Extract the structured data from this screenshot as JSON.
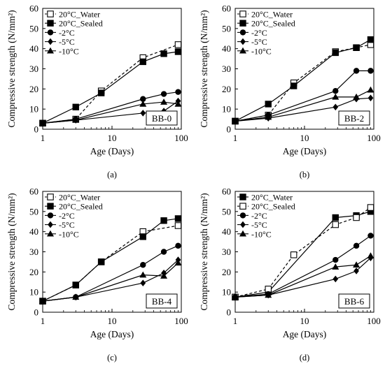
{
  "chart_data": [
    {
      "type": "line",
      "panel_label": "(a)",
      "box_label": "BB-0",
      "xlabel": "Age (Days)",
      "ylabel": "Compressive strength (N/mm²)",
      "x_scale": "log",
      "xlim": [
        1,
        100
      ],
      "ylim": [
        0,
        60
      ],
      "x_ticks": [
        "1",
        "10",
        "100"
      ],
      "y_ticks": [
        "0",
        "10",
        "20",
        "30",
        "40",
        "50",
        "60"
      ],
      "legend_position": "top-left",
      "series": [
        {
          "name": "20°C_Water",
          "marker": "open-square",
          "dash": true,
          "x": [
            1,
            3,
            7,
            28,
            90
          ],
          "y": [
            3,
            5,
            19,
            35.5,
            42
          ]
        },
        {
          "name": "20°C_Sealed",
          "marker": "filled-square",
          "dash": false,
          "x": [
            1,
            3,
            7,
            28,
            56,
            90
          ],
          "y": [
            3,
            11,
            18,
            33.5,
            37.5,
            38.5
          ]
        },
        {
          "name": "-2°C",
          "marker": "circle",
          "dash": false,
          "x": [
            1,
            3,
            28,
            56,
            90
          ],
          "y": [
            3,
            5,
            15,
            17.5,
            18.5
          ]
        },
        {
          "name": "-5°C",
          "marker": "diamond",
          "dash": false,
          "x": [
            1,
            3,
            28,
            56,
            90
          ],
          "y": [
            3,
            4.5,
            8,
            9,
            14
          ]
        },
        {
          "name": "-10°C",
          "marker": "triangle",
          "dash": false,
          "x": [
            1,
            3,
            28,
            56,
            90
          ],
          "y": [
            3,
            4.5,
            12.5,
            13.5,
            12.5
          ]
        }
      ]
    },
    {
      "type": "line",
      "panel_label": "(b)",
      "box_label": "BB-2",
      "xlabel": "Age (Days)",
      "ylabel": "Compressive strength (N/mm²)",
      "x_scale": "log",
      "xlim": [
        1,
        100
      ],
      "ylim": [
        0,
        60
      ],
      "x_ticks": [
        "1",
        "10",
        "100"
      ],
      "y_ticks": [
        "0",
        "10",
        "20",
        "30",
        "40",
        "50",
        "60"
      ],
      "legend_position": "top-left",
      "series": [
        {
          "name": "20°C_Water",
          "marker": "open-square",
          "dash": true,
          "x": [
            1,
            3,
            7,
            28,
            56,
            90
          ],
          "y": [
            4,
            7,
            23,
            38.5,
            40.5,
            42
          ]
        },
        {
          "name": "20°C_Sealed",
          "marker": "filled-square",
          "dash": false,
          "x": [
            1,
            3,
            7,
            28,
            56,
            90
          ],
          "y": [
            4,
            12.5,
            21.5,
            38,
            40.5,
            44.5
          ]
        },
        {
          "name": "-2°C",
          "marker": "circle",
          "dash": false,
          "x": [
            1,
            3,
            28,
            56,
            90
          ],
          "y": [
            4,
            7,
            19,
            29,
            29
          ]
        },
        {
          "name": "-5°C",
          "marker": "diamond",
          "dash": false,
          "x": [
            1,
            3,
            28,
            56,
            90
          ],
          "y": [
            4,
            5.5,
            11,
            15,
            15.5
          ]
        },
        {
          "name": "-10°C",
          "marker": "triangle",
          "dash": false,
          "x": [
            1,
            3,
            28,
            56,
            90
          ],
          "y": [
            4,
            6,
            16,
            16,
            19.5
          ]
        }
      ]
    },
    {
      "type": "line",
      "panel_label": "(c)",
      "box_label": "BB-4",
      "xlabel": "Age (Days)",
      "ylabel": "Compressive strength (N/mm²)",
      "x_scale": "log",
      "xlim": [
        1,
        100
      ],
      "ylim": [
        0,
        60
      ],
      "x_ticks": [
        "1",
        "10",
        "100"
      ],
      "y_ticks": [
        "0",
        "10",
        "20",
        "30",
        "40",
        "50",
        "60"
      ],
      "legend_position": "top-left",
      "series": [
        {
          "name": "20°C_Water",
          "marker": "open-square",
          "dash": true,
          "x": [
            1,
            3,
            7,
            28,
            90
          ],
          "y": [
            5.5,
            13.5,
            25,
            40,
            43
          ]
        },
        {
          "name": "20°C_Sealed",
          "marker": "filled-square",
          "dash": false,
          "x": [
            1,
            3,
            7,
            28,
            56,
            90
          ],
          "y": [
            5.5,
            13.5,
            25,
            37.5,
            45.5,
            46.5
          ]
        },
        {
          "name": "-2°C",
          "marker": "circle",
          "dash": false,
          "x": [
            1,
            3,
            28,
            56,
            90
          ],
          "y": [
            5.5,
            7.5,
            23.5,
            30,
            33
          ]
        },
        {
          "name": "-5°C",
          "marker": "diamond",
          "dash": false,
          "x": [
            1,
            3,
            28,
            56,
            90
          ],
          "y": [
            5.5,
            7.5,
            14.5,
            19.5,
            26
          ]
        },
        {
          "name": "-10°C",
          "marker": "triangle",
          "dash": false,
          "x": [
            1,
            3,
            28,
            56,
            90
          ],
          "y": [
            5.5,
            7.5,
            18.5,
            18,
            24.5
          ]
        }
      ]
    },
    {
      "type": "line",
      "panel_label": "(d)",
      "box_label": "BB-6",
      "xlabel": "Age (Days)",
      "ylabel": "Compressive strength (N/mm²)",
      "x_scale": "log",
      "xlim": [
        1,
        100
      ],
      "ylim": [
        0,
        60
      ],
      "x_ticks": [
        "1",
        "10",
        "100"
      ],
      "y_ticks": [
        "0",
        "10",
        "20",
        "30",
        "40",
        "50",
        "60"
      ],
      "legend_position": "top-left",
      "series": [
        {
          "name": "20°C_Water",
          "marker": "filled-square",
          "dash": false,
          "x": [
            1,
            3,
            28,
            56,
            90
          ],
          "y": [
            7.5,
            10,
            47,
            48,
            50
          ]
        },
        {
          "name": "20°C_Sealed",
          "marker": "open-square",
          "dash": true,
          "x": [
            1,
            3,
            7,
            28,
            56,
            90
          ],
          "y": [
            7.5,
            11.5,
            28.5,
            43.5,
            47,
            52
          ]
        },
        {
          "name": "-2°C",
          "marker": "circle",
          "dash": false,
          "x": [
            1,
            3,
            28,
            56,
            90
          ],
          "y": [
            7.5,
            9,
            26,
            33,
            38
          ]
        },
        {
          "name": "-5°C",
          "marker": "diamond",
          "dash": false,
          "x": [
            1,
            3,
            28,
            56,
            90
          ],
          "y": [
            7.5,
            8.5,
            16.5,
            20.5,
            27
          ]
        },
        {
          "name": "-10°C",
          "marker": "triangle",
          "dash": false,
          "x": [
            1,
            3,
            28,
            56,
            90
          ],
          "y": [
            7.5,
            8.5,
            22.5,
            23.5,
            28
          ]
        }
      ]
    }
  ]
}
